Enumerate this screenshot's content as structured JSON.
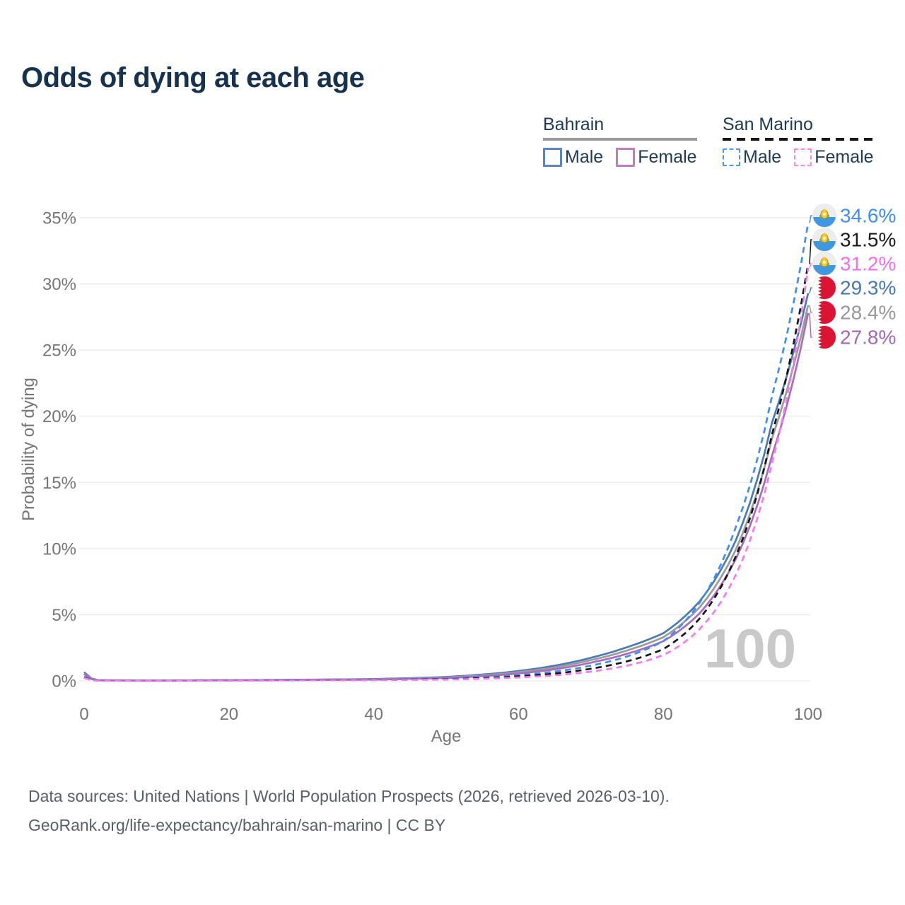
{
  "title": "Odds of dying at each age",
  "legend": {
    "groups": [
      {
        "id": "bahrain",
        "label": "Bahrain",
        "line_style": "solid",
        "rule_color": "#999999",
        "items": [
          {
            "label": "Male",
            "color": "#5c85c6",
            "dashed": false
          },
          {
            "label": "Female",
            "color": "#c07cc3",
            "dashed": false
          }
        ]
      },
      {
        "id": "san-marino",
        "label": "San Marino",
        "line_style": "dashed",
        "rule_color": "#151515",
        "items": [
          {
            "label": "Male",
            "color": "#4f93f7",
            "dashed": true
          },
          {
            "label": "Female",
            "color": "#fb84f6",
            "dashed": true
          }
        ]
      }
    ]
  },
  "chart_data": {
    "type": "line",
    "title": "Odds of dying at each age",
    "xlabel": "Age",
    "ylabel": "Probability of dying",
    "xlim": [
      0,
      100
    ],
    "ylim": [
      0,
      35
    ],
    "x_ticks": [
      0,
      20,
      40,
      60,
      80,
      100
    ],
    "y_ticks": [
      0,
      5,
      10,
      15,
      20,
      25,
      30,
      35
    ],
    "y_tick_suffix": "%",
    "grid": true,
    "legend_position": "top-right",
    "watermark": "100",
    "ages": [
      0,
      2,
      10,
      20,
      30,
      40,
      50,
      55,
      60,
      65,
      70,
      75,
      80,
      85,
      90,
      95,
      100
    ],
    "series": [
      {
        "name": "Bahrain Male",
        "country": "Bahrain",
        "sex": "male",
        "line": "solid",
        "color": "#4b7ab6",
        "flag": "bahrain",
        "end_label": "29.3%",
        "label_color": "#4577b3",
        "values": [
          0.65,
          0.05,
          0.03,
          0.06,
          0.09,
          0.14,
          0.3,
          0.48,
          0.75,
          1.15,
          1.75,
          2.55,
          3.6,
          6.0,
          10.6,
          19.5,
          29.3
        ]
      },
      {
        "name": "Bahrain Combined",
        "country": "Bahrain",
        "sex": "combined",
        "line": "solid",
        "color": "#9b9b9d",
        "flag": "bahrain",
        "end_label": "28.4%",
        "label_color": "#97989a",
        "values": [
          0.55,
          0.045,
          0.025,
          0.05,
          0.08,
          0.12,
          0.26,
          0.42,
          0.66,
          1.02,
          1.57,
          2.3,
          3.3,
          5.55,
          9.9,
          18.3,
          28.4
        ]
      },
      {
        "name": "Bahrain Female",
        "country": "Bahrain",
        "sex": "female",
        "line": "solid",
        "color": "#a96cbb",
        "flag": "bahrain",
        "end_label": "27.8%",
        "label_color": "#a467b3",
        "values": [
          0.5,
          0.04,
          0.02,
          0.04,
          0.06,
          0.1,
          0.22,
          0.36,
          0.56,
          0.88,
          1.38,
          2.05,
          3.0,
          5.1,
          9.2,
          17.0,
          27.8
        ]
      },
      {
        "name": "San Marino Male",
        "country": "San Marino",
        "sex": "male",
        "line": "dashed",
        "color": "#3e8ef6",
        "flag": "san-marino",
        "end_label": "34.6%",
        "label_color": "#3e8ef6",
        "values": [
          0.3,
          0.02,
          0.012,
          0.04,
          0.06,
          0.09,
          0.17,
          0.27,
          0.43,
          0.7,
          1.15,
          1.85,
          3.0,
          5.9,
          11.6,
          21.5,
          34.6
        ]
      },
      {
        "name": "San Marino Combined",
        "country": "San Marino",
        "sex": "combined",
        "line": "dashed",
        "color": "#161616",
        "flag": "san-marino",
        "end_label": "31.5%",
        "label_color": "#1b1b1b",
        "values": [
          0.25,
          0.018,
          0.01,
          0.03,
          0.05,
          0.07,
          0.13,
          0.21,
          0.34,
          0.55,
          0.92,
          1.48,
          2.4,
          4.7,
          9.4,
          18.6,
          31.5
        ]
      },
      {
        "name": "San Marino Female",
        "country": "San Marino",
        "sex": "female",
        "line": "dashed",
        "color": "#f678f2",
        "flag": "san-marino",
        "end_label": "31.2%",
        "label_color": "#f46cf0",
        "values": [
          0.22,
          0.015,
          0.01,
          0.025,
          0.04,
          0.06,
          0.1,
          0.16,
          0.26,
          0.42,
          0.7,
          1.15,
          1.95,
          3.9,
          8.0,
          16.4,
          31.2
        ]
      }
    ]
  },
  "footer": {
    "line1": "Data sources: United Nations | World Population Prospects (2026, retrieved 2026-03-10).",
    "line2": "GeoRank.org/life-expectancy/bahrain/san-marino | CC BY"
  }
}
